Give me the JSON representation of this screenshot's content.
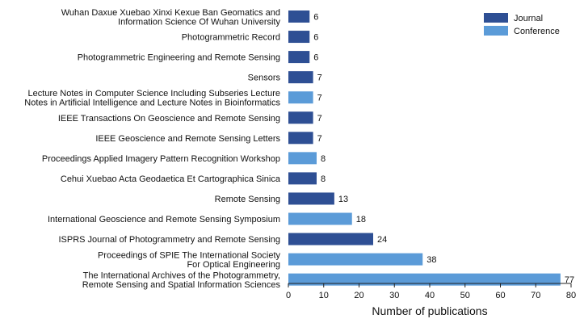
{
  "chart_data": {
    "type": "bar",
    "orientation": "horizontal",
    "xlabel": "Number of publications",
    "ylabel": "",
    "xlim": [
      0,
      80
    ],
    "xticks": [
      0,
      10,
      20,
      30,
      40,
      50,
      60,
      70,
      80
    ],
    "grid": false,
    "legend_position": "top-right",
    "series": [
      {
        "name": "Journal",
        "color": "#2e4f94"
      },
      {
        "name": "Conference",
        "color": "#5b9bd8"
      }
    ],
    "categories": [
      {
        "label": [
          "Wuhan Daxue Xuebao Xinxi Kexue Ban Geomatics and",
          "Information Science Of Wuhan University"
        ],
        "value": 6,
        "series": "Journal"
      },
      {
        "label": [
          "Photogrammetric Record"
        ],
        "value": 6,
        "series": "Journal"
      },
      {
        "label": [
          "Photogrammetric Engineering and Remote Sensing"
        ],
        "value": 6,
        "series": "Journal"
      },
      {
        "label": [
          "Sensors"
        ],
        "value": 7,
        "series": "Journal"
      },
      {
        "label": [
          "Lecture Notes in Computer Science Including Subseries Lecture",
          "Notes in Artificial Intelligence and Lecture Notes in Bioinformatics"
        ],
        "value": 7,
        "series": "Conference"
      },
      {
        "label": [
          "IEEE Transactions On Geoscience and Remote Sensing"
        ],
        "value": 7,
        "series": "Journal"
      },
      {
        "label": [
          "IEEE Geoscience and Remote Sensing Letters"
        ],
        "value": 7,
        "series": "Journal"
      },
      {
        "label": [
          "Proceedings Applied Imagery Pattern Recognition Workshop"
        ],
        "value": 8,
        "series": "Conference"
      },
      {
        "label": [
          "Cehui Xuebao Acta Geodaetica Et Cartographica Sinica"
        ],
        "value": 8,
        "series": "Journal"
      },
      {
        "label": [
          "Remote Sensing"
        ],
        "value": 13,
        "series": "Journal"
      },
      {
        "label": [
          "International Geoscience and Remote Sensing Symposium"
        ],
        "value": 18,
        "series": "Conference"
      },
      {
        "label": [
          "ISPRS Journal of Photogrammetry and Remote Sensing"
        ],
        "value": 24,
        "series": "Journal"
      },
      {
        "label": [
          "Proceedings of SPIE The International Society",
          "For Optical Engineering"
        ],
        "value": 38,
        "series": "Conference"
      },
      {
        "label": [
          "The International Archives of the Photogrammetry,",
          "Remote Sensing and Spatial Information Sciences"
        ],
        "value": 77,
        "series": "Conference"
      }
    ]
  }
}
